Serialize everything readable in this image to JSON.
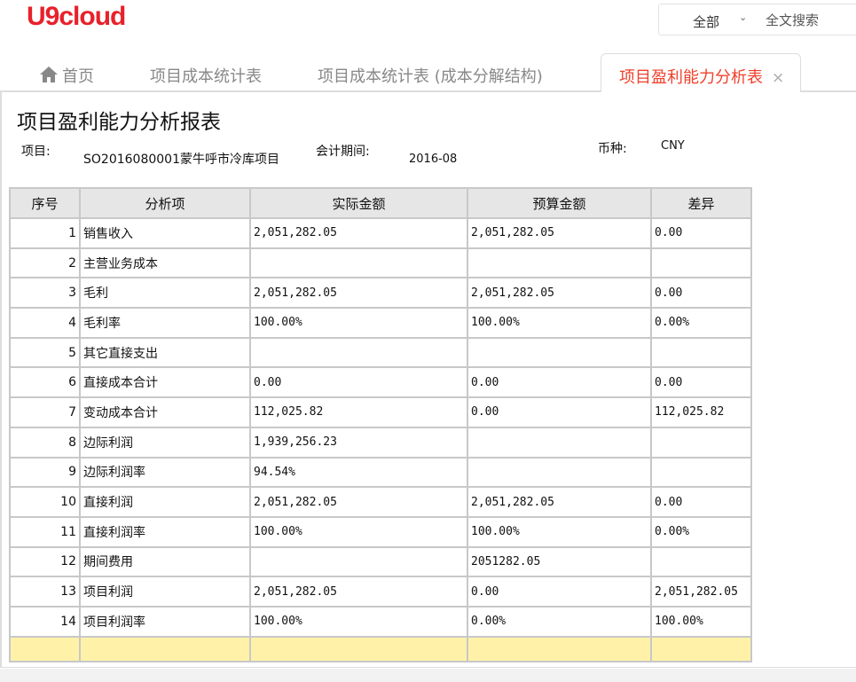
{
  "app": {
    "logo": "U9cloud"
  },
  "search": {
    "scope": "全部",
    "label": "全文搜索"
  },
  "tabs": [
    {
      "label": "首页"
    },
    {
      "label": "项目成本统计表"
    },
    {
      "label": "项目成本统计表 (成本分解结构)"
    },
    {
      "label": "项目盈利能力分析表",
      "active": true,
      "close": "×"
    }
  ],
  "report": {
    "title": "项目盈利能力分析报表",
    "project_label": "项目:",
    "project": "SO2016080001蒙牛呼市冷库项目",
    "period_label": "会计期间:",
    "period": "2016-08",
    "currency_label": "币种:",
    "currency": "CNY",
    "columns": [
      "序号",
      "分析项",
      "实际金额",
      "预算金额",
      "差异"
    ],
    "rows": [
      [
        "1",
        "销售收入",
        "2,051,282.05",
        "2,051,282.05",
        "0.00"
      ],
      [
        "2",
        "主营业务成本",
        "",
        "",
        ""
      ],
      [
        "3",
        "毛利",
        "2,051,282.05",
        "2,051,282.05",
        "0.00"
      ],
      [
        "4",
        "毛利率",
        "100.00%",
        "100.00%",
        "0.00%"
      ],
      [
        "5",
        "其它直接支出",
        "",
        "",
        ""
      ],
      [
        "6",
        "直接成本合计",
        "0.00",
        "0.00",
        "0.00"
      ],
      [
        "7",
        "变动成本合计",
        "112,025.82",
        "0.00",
        "112,025.82"
      ],
      [
        "8",
        "边际利润",
        "1,939,256.23",
        "",
        ""
      ],
      [
        "9",
        "边际利润率",
        "94.54%",
        "",
        ""
      ],
      [
        "10",
        "直接利润",
        "2,051,282.05",
        "2,051,282.05",
        "0.00"
      ],
      [
        "11",
        "直接利润率",
        "100.00%",
        "100.00%",
        "0.00%"
      ],
      [
        "12",
        "期间费用",
        "",
        "2051282.05",
        ""
      ],
      [
        "13",
        "项目利润",
        "2,051,282.05",
        "0.00",
        "2,051,282.05"
      ],
      [
        "14",
        "项目利润率",
        "100.00%",
        "0.00%",
        "100.00%"
      ]
    ]
  }
}
